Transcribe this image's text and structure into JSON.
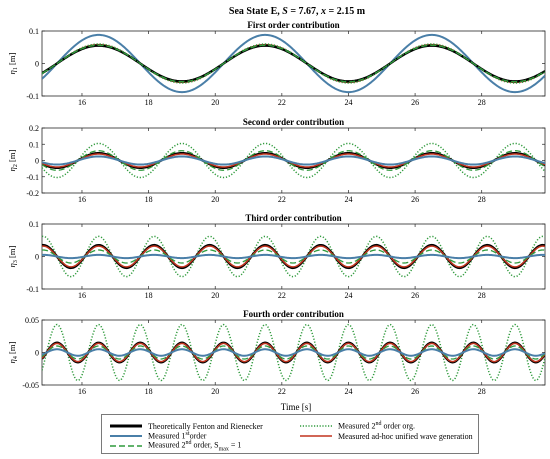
{
  "figure": {
    "title_prefix": "Sea State E, ",
    "title_s": "S",
    "title_mid": " = 7.67, ",
    "title_x": "x",
    "title_suffix": " = 2.15 m",
    "xlabel": "Time [s]"
  },
  "colors": {
    "theory": "#000000",
    "first": "#4a7fa8",
    "org2": "#2f9a3c",
    "smax": "#2f9a3c",
    "adhoc": "#c2341f",
    "grey_dash": "#8c8c8c",
    "axis": "#262626"
  },
  "legend": {
    "theory": "Theoretically Fenton and Rienecker",
    "first_pre": "Measured 1",
    "first_sup": "st",
    "first_post": "order",
    "org2_pre": "Measured 2",
    "org2_sup": "nd",
    "org2_post": " order org.",
    "smax_pre": "Measured 2",
    "smax_sup": "nd",
    "smax_mid": " order, S",
    "smax_sub": "max",
    "smax_post": " = 1",
    "adhoc": "Measured ad-hoc unified wave generation"
  },
  "chart_data": [
    {
      "type": "line",
      "title": "First order contribution",
      "ylabel_symbol": "η",
      "ylabel_sub": "1",
      "ylabel_unit": " [m]",
      "xlim": [
        14.8,
        29.9
      ],
      "ylim": [
        -0.1,
        0.1
      ],
      "xticks": [
        16,
        18,
        20,
        22,
        24,
        26,
        28
      ],
      "yticks": [
        -0.1,
        0,
        0.1
      ],
      "ytick_labels": [
        "-0.1",
        "0",
        "0.1"
      ],
      "period": 5.0,
      "phase_peak": 16.5,
      "harmonic": 1,
      "series": [
        {
          "name": "Measured 1st order",
          "amplitude": 0.088
        },
        {
          "name": "Measured ad-hoc unified wave generation",
          "amplitude": 0.058
        },
        {
          "name": "Theoretically Fenton and Rienecker",
          "amplitude": 0.055
        },
        {
          "name": "Measured 2nd order org.",
          "amplitude": 0.06
        },
        {
          "name": "Measured 2nd order, Smax = 1",
          "amplitude": 0.056
        }
      ]
    },
    {
      "type": "line",
      "title": "Second order contribution",
      "ylabel_symbol": "η",
      "ylabel_sub": "2",
      "ylabel_unit": " [m]",
      "xlim": [
        14.8,
        29.9
      ],
      "ylim": [
        -0.2,
        0.2
      ],
      "xticks": [
        16,
        18,
        20,
        22,
        24,
        26,
        28
      ],
      "yticks": [
        -0.2,
        -0.1,
        0,
        0.1,
        0.2
      ],
      "ytick_labels": [
        "-0.2",
        "-0.1",
        "0",
        "0.1",
        "0.2"
      ],
      "period": 5.0,
      "phase_peak": 16.5,
      "harmonic": 2,
      "series": [
        {
          "name": "Measured 2nd order org.",
          "amplitude": 0.105
        },
        {
          "name": "Theoretically Fenton and Rienecker",
          "amplitude": 0.045
        },
        {
          "name": "Measured ad-hoc unified wave generation",
          "amplitude": 0.04
        },
        {
          "name": "Measured 2nd order, Smax = 1",
          "amplitude": 0.06
        },
        {
          "name": "Measured 1st order",
          "amplitude": 0.025
        }
      ]
    },
    {
      "type": "line",
      "title": "Third order contribution",
      "ylabel_symbol": "η",
      "ylabel_sub": "3",
      "ylabel_unit": " [m]",
      "xlim": [
        14.8,
        29.9
      ],
      "ylim": [
        -0.1,
        0.1
      ],
      "xticks": [
        16,
        18,
        20,
        22,
        24,
        26,
        28
      ],
      "yticks": [
        -0.1,
        0,
        0.1
      ],
      "ytick_labels": [
        "-0.1",
        "0",
        "0.1"
      ],
      "period": 5.0,
      "phase_peak": 16.5,
      "harmonic": 3,
      "series": [
        {
          "name": "Measured 2nd order org.",
          "amplitude": 0.062
        },
        {
          "name": "Theoretically Fenton and Rienecker",
          "amplitude": 0.035
        },
        {
          "name": "Measured ad-hoc unified wave generation",
          "amplitude": 0.032
        },
        {
          "name": "Measured 2nd order, Smax = 1",
          "amplitude": 0.02
        },
        {
          "name": "Measured 1st order",
          "amplitude": 0.005
        }
      ]
    },
    {
      "type": "line",
      "title": "Fourth order contribution",
      "ylabel_symbol": "η",
      "ylabel_sub": "4",
      "ylabel_unit": " [m]",
      "xlim": [
        14.8,
        29.9
      ],
      "ylim": [
        -0.05,
        0.05
      ],
      "xticks": [
        16,
        18,
        20,
        22,
        24,
        26,
        28
      ],
      "yticks": [
        -0.05,
        0,
        0.05
      ],
      "ytick_labels": [
        "-0.05",
        "0",
        "0.05"
      ],
      "period": 5.0,
      "phase_peak": 16.5,
      "harmonic": 4,
      "series": [
        {
          "name": "Measured 2nd order org.",
          "amplitude": 0.043
        },
        {
          "name": "Theoretically Fenton and Rienecker",
          "amplitude": 0.015
        },
        {
          "name": "Measured ad-hoc unified wave generation",
          "amplitude": 0.014
        },
        {
          "name": "Measured 2nd order, Smax = 1",
          "amplitude": 0.01
        },
        {
          "name": "Measured 1st order",
          "amplitude": 0.005
        }
      ]
    }
  ]
}
